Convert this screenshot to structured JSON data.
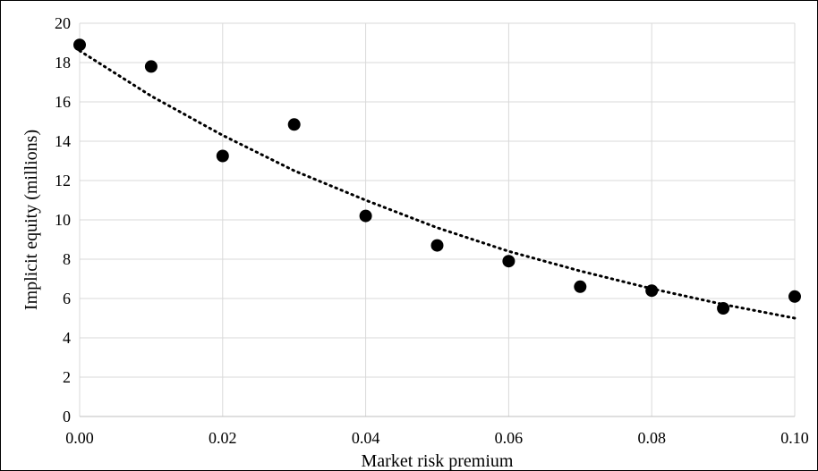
{
  "chart_data": {
    "type": "scatter",
    "title": "",
    "xlabel": "Market risk premium",
    "ylabel": "Implicit equity (millions)",
    "xlim": [
      0,
      0.1
    ],
    "ylim": [
      0,
      20
    ],
    "x_ticks": [
      0,
      0.02,
      0.04,
      0.06,
      0.08,
      0.1
    ],
    "x_tick_labels": [
      "0.00",
      "0.02",
      "0.04",
      "0.06",
      "0.08",
      "0.10"
    ],
    "y_ticks": [
      0,
      2,
      4,
      6,
      8,
      10,
      12,
      14,
      16,
      18,
      20
    ],
    "y_tick_labels": [
      "0",
      "2",
      "4",
      "6",
      "8",
      "10",
      "12",
      "14",
      "16",
      "18",
      "20"
    ],
    "grid": true,
    "legend": "none",
    "series": [
      {
        "type": "scatter",
        "color": "#000000",
        "x": [
          0,
          0.01,
          0.02,
          0.03,
          0.04,
          0.05,
          0.06,
          0.07,
          0.08,
          0.09,
          0.1
        ],
        "y": [
          18.9,
          17.8,
          13.25,
          14.85,
          10.2,
          8.7,
          7.9,
          6.6,
          6.4,
          5.5,
          6.1
        ]
      }
    ],
    "trendline": {
      "type": "exponential",
      "style": "dotted",
      "color": "#000000",
      "x": [
        0,
        0.01,
        0.02,
        0.03,
        0.04,
        0.05,
        0.06,
        0.07,
        0.08,
        0.09,
        0.1
      ],
      "y": [
        18.6,
        16.3,
        14.3,
        12.5,
        11.0,
        9.6,
        8.4,
        7.4,
        6.5,
        5.7,
        5.0
      ]
    }
  }
}
